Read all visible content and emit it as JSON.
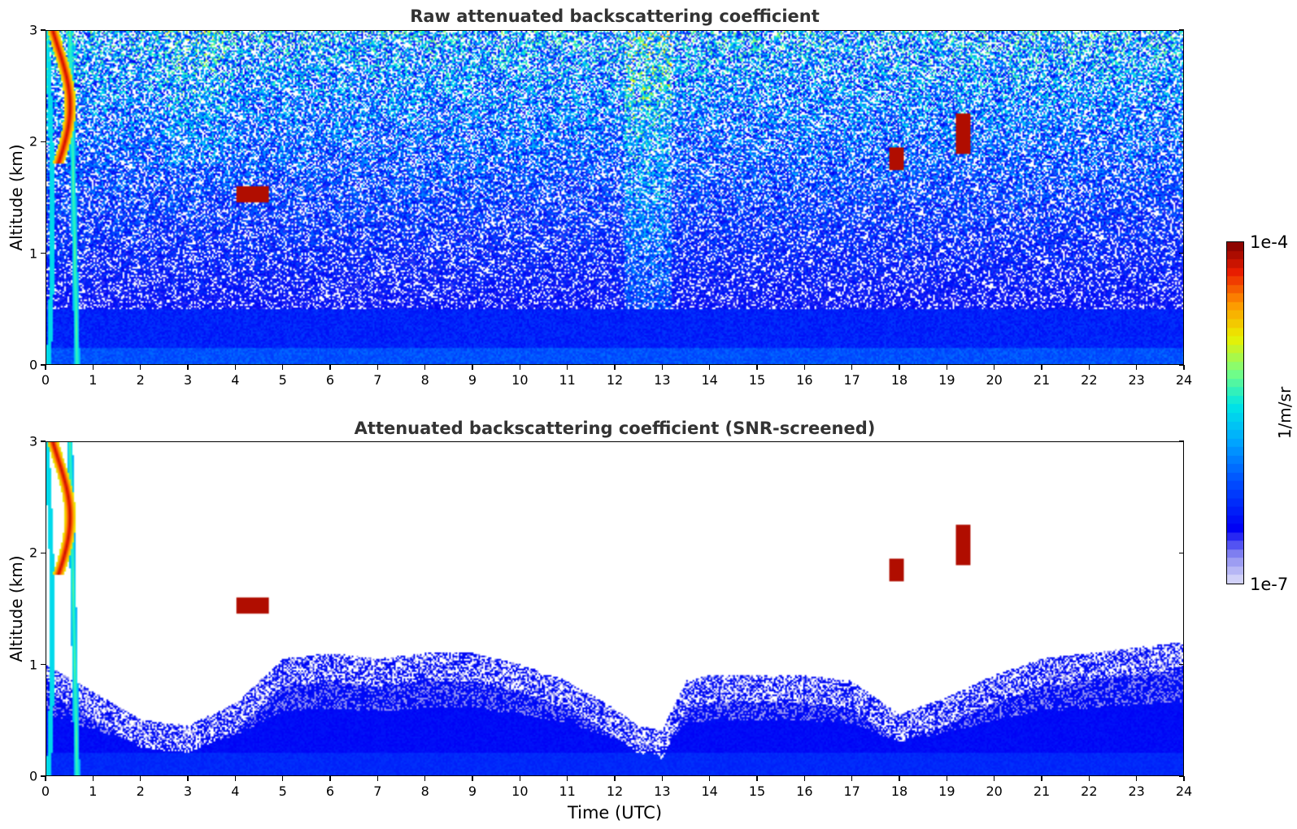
{
  "chart_data": [
    {
      "type": "heatmap",
      "title": "Raw attenuated backscattering coefficient",
      "xlabel": "",
      "ylabel": "Altitude (km)",
      "xlim": [
        0,
        24
      ],
      "ylim": [
        0,
        3
      ],
      "x_ticks": [
        "0",
        "1",
        "2",
        "3",
        "4",
        "5",
        "6",
        "7",
        "8",
        "9",
        "10",
        "11",
        "12",
        "13",
        "14",
        "15",
        "16",
        "17",
        "18",
        "19",
        "20",
        "21",
        "22",
        "23",
        "24"
      ],
      "y_ticks": [
        "0",
        "1",
        "2",
        "3"
      ],
      "features": [
        {
          "label": "near-surface enhanced backscatter",
          "x_range": [
            0,
            24
          ],
          "y_range": [
            0,
            0.6
          ]
        },
        {
          "label": "elevated cloud/aerosol at low x",
          "x_range": [
            0.0,
            1.0
          ],
          "y_range": [
            0,
            3
          ]
        },
        {
          "label": "high-noise band",
          "x_range": [
            12.2,
            13.2
          ],
          "y_range": [
            0.3,
            3
          ]
        },
        {
          "label": "small cloud",
          "x_range": [
            4.0,
            4.7
          ],
          "y_range": [
            1.45,
            1.6
          ]
        },
        {
          "label": "small cloud",
          "x_range": [
            17.8,
            18.1
          ],
          "y_range": [
            1.75,
            1.95
          ]
        },
        {
          "label": "small cloud",
          "x_range": [
            19.2,
            19.5
          ],
          "y_range": [
            1.9,
            2.2
          ]
        }
      ]
    },
    {
      "type": "heatmap",
      "title": "Attenuated backscattering coefficient (SNR-screened)",
      "xlabel": "Time (UTC)",
      "ylabel": "Altitude (km)",
      "xlim": [
        0,
        24
      ],
      "ylim": [
        0,
        3
      ],
      "x_ticks": [
        "0",
        "1",
        "2",
        "3",
        "4",
        "5",
        "6",
        "7",
        "8",
        "9",
        "10",
        "11",
        "12",
        "13",
        "14",
        "15",
        "16",
        "17",
        "18",
        "19",
        "20",
        "21",
        "22",
        "23",
        "24"
      ],
      "y_ticks": [
        "0",
        "1",
        "2",
        "3"
      ],
      "boundary_layer_top_km": [
        [
          0,
          1.0
        ],
        [
          1,
          0.75
        ],
        [
          2,
          0.5
        ],
        [
          3,
          0.45
        ],
        [
          4,
          0.65
        ],
        [
          5,
          1.05
        ],
        [
          6,
          1.1
        ],
        [
          7,
          1.05
        ],
        [
          8,
          1.1
        ],
        [
          9,
          1.1
        ],
        [
          10,
          1.0
        ],
        [
          11,
          0.85
        ],
        [
          12,
          0.6
        ],
        [
          12.5,
          0.45
        ],
        [
          13,
          0.4
        ],
        [
          13.5,
          0.85
        ],
        [
          14,
          0.9
        ],
        [
          15,
          0.9
        ],
        [
          16,
          0.9
        ],
        [
          17,
          0.85
        ],
        [
          18,
          0.55
        ],
        [
          19,
          0.7
        ],
        [
          20,
          0.9
        ],
        [
          21,
          1.05
        ],
        [
          22,
          1.1
        ],
        [
          23,
          1.15
        ],
        [
          24,
          1.2
        ]
      ]
    }
  ],
  "colorbar": {
    "max_label": "1e-4",
    "min_label": "1e-7",
    "unit": "1/m/sr"
  },
  "colors": {
    "title": "#333333",
    "screened_background": "#ffffff"
  }
}
